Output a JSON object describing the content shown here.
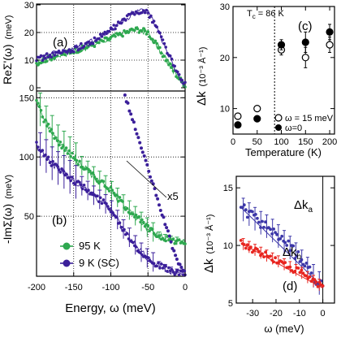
{
  "colors": {
    "green": "#2ea84f",
    "purple": "#3b1f9a",
    "red": "#e8251f",
    "blue": "#3c37a8"
  },
  "chart_data": [
    {
      "panel": "(a)",
      "type": "scatter",
      "ylabel": "ReΣ'(ω) (meV)",
      "xlim": [
        -200,
        0
      ],
      "ylim": [
        0,
        30
      ],
      "yticks": [
        "0",
        "10",
        "20",
        "30"
      ],
      "series": [
        {
          "name": "95 K",
          "color": "green",
          "x": [
            -200,
            -190,
            -180,
            -170,
            -160,
            -150,
            -140,
            -130,
            -120,
            -110,
            -100,
            -90,
            -80,
            -70,
            -60,
            -50,
            -40,
            -30,
            -20,
            -10,
            0
          ],
          "y": [
            9,
            10,
            11,
            12,
            12.5,
            13.5,
            14,
            15,
            16,
            17,
            18,
            19,
            20,
            21,
            21,
            20,
            16,
            12,
            8,
            4,
            1
          ]
        },
        {
          "name": "9 K (SC)",
          "color": "purple",
          "x": [
            -200,
            -190,
            -180,
            -170,
            -160,
            -150,
            -140,
            -130,
            -120,
            -110,
            -100,
            -90,
            -80,
            -70,
            -60,
            -50,
            -40,
            -30,
            -20,
            -10,
            0
          ],
          "y": [
            10,
            11,
            12,
            12.5,
            13,
            14,
            15,
            16,
            17.5,
            19,
            21,
            23,
            25,
            27,
            28,
            27,
            23,
            17,
            11,
            5,
            1
          ]
        }
      ]
    },
    {
      "panel": "(b)",
      "type": "scatter",
      "xlabel": "Energy, ω (meV)",
      "ylabel": "-ImΣ(ω) (meV)",
      "xlim": [
        -200,
        0
      ],
      "ylim": [
        0,
        155
      ],
      "xticks": [
        "-200",
        "-150",
        "-100",
        "-50",
        "0"
      ],
      "yticks": [
        "50",
        "100",
        "150"
      ],
      "annotation": "x5",
      "series": [
        {
          "name": "95 K",
          "color": "green",
          "x": [
            -200,
            -190,
            -180,
            -170,
            -160,
            -150,
            -140,
            -130,
            -120,
            -110,
            -100,
            -90,
            -80,
            -70,
            -60,
            -50,
            -40,
            -30,
            -20,
            -10,
            0
          ],
          "y": [
            148,
            132,
            122,
            112,
            106,
            100,
            93,
            88,
            82,
            78,
            72,
            65,
            58,
            52,
            46,
            40,
            35,
            32,
            30,
            29,
            28
          ]
        },
        {
          "name": "9 K (SC)",
          "color": "purple",
          "x": [
            -200,
            -190,
            -180,
            -170,
            -160,
            -150,
            -140,
            -130,
            -120,
            -110,
            -100,
            -90,
            -80,
            -70,
            -60,
            -50,
            -40,
            -30,
            -20,
            -10,
            0
          ],
          "y": [
            110,
            103,
            95,
            90,
            86,
            80,
            76,
            71,
            66,
            62,
            56,
            46,
            36,
            28,
            20,
            14,
            10,
            7,
            4,
            2,
            1
          ]
        },
        {
          "name": "9 K (SC) x5",
          "color": "purple",
          "x": [
            -85,
            -80,
            -75,
            -70,
            -65,
            -60,
            -55,
            -50,
            -45,
            -40,
            -35,
            -30,
            -25,
            -20,
            -15,
            -10,
            -5,
            0
          ],
          "y": [
            160,
            150,
            140,
            130,
            120,
            110,
            100,
            90,
            80,
            70,
            60,
            50,
            40,
            30,
            20,
            12,
            6,
            2
          ]
        }
      ]
    },
    {
      "panel": "(c)",
      "type": "scatter",
      "xlabel": "Temperature (K)",
      "ylabel": "Δk (10⁻³ Å⁻¹)",
      "xlim": [
        0,
        210
      ],
      "ylim": [
        5,
        30
      ],
      "xticks": [
        "0",
        "50",
        "100",
        "150",
        "200"
      ],
      "yticks": [
        "10",
        "20",
        "30"
      ],
      "annotation": "Tc = 86 K",
      "vline": 86,
      "series": [
        {
          "name": "ω = 15 meV",
          "marker": "open",
          "x": [
            10,
            50,
            100,
            150,
            200
          ],
          "y": [
            8.5,
            10,
            21.5,
            20,
            22.5
          ],
          "err": [
            0,
            0,
            1,
            2,
            1.5
          ]
        },
        {
          "name": "ω=0",
          "marker": "filled",
          "x": [
            10,
            50,
            100,
            150,
            200
          ],
          "y": [
            6.8,
            8,
            22.5,
            23,
            25
          ],
          "err": [
            0,
            0,
            1,
            2,
            1.5
          ]
        }
      ]
    },
    {
      "panel": "(d)",
      "type": "scatter",
      "xlabel": "ω (meV)",
      "ylabel": "Δk (10⁻³ Å⁻¹)",
      "xlim": [
        -37,
        5
      ],
      "ylim": [
        5,
        16
      ],
      "xticks": [
        "-30",
        "-20",
        "-10",
        "0"
      ],
      "yticks": [
        "5",
        "10",
        "15"
      ],
      "vline": 0,
      "series": [
        {
          "name": "Δk_a",
          "color": "blue",
          "x": [
            -35,
            -33,
            -31,
            -29,
            -27,
            -25,
            -23,
            -21,
            -19,
            -17,
            -15,
            -13,
            -11,
            -9,
            -7,
            -5,
            -3,
            -1,
            0
          ],
          "y": [
            13.2,
            13,
            12.6,
            12.3,
            12,
            11.8,
            11.5,
            11.2,
            10.8,
            10.4,
            10,
            9.6,
            9.1,
            8.6,
            8.1,
            7.6,
            7.1,
            6.6,
            6.4
          ]
        },
        {
          "name": "Δk_b",
          "color": "red",
          "x": [
            -35,
            -33,
            -31,
            -29,
            -27,
            -25,
            -23,
            -21,
            -19,
            -17,
            -15,
            -13,
            -11,
            -9,
            -7,
            -5,
            -3,
            -1,
            0
          ],
          "y": [
            10.2,
            10,
            9.8,
            9.6,
            9.4,
            9.2,
            9,
            8.8,
            8.6,
            8.4,
            8.2,
            8,
            7.8,
            7.6,
            7.3,
            7,
            6.8,
            6.5,
            6.3
          ]
        }
      ]
    }
  ],
  "text": {
    "a_label": "(a)",
    "b_label": "(b)",
    "c_label": "(c)",
    "d_label": "(d)",
    "b_x5": "x5",
    "c_tc": "T",
    "c_tc_sub": "c",
    "c_tc_val": " = 86 K",
    "c_leg_open": "ω = 15 meV",
    "c_leg_filled": "ω=0",
    "ab_ylabel_top": "ReΣ'(ω)",
    "ab_ylabel_top_unit": "(meV)",
    "ab_ylabel_bot": "-ImΣ(ω)",
    "ab_ylabel_bot_unit": "(meV)",
    "ab_xlabel": "Energy, ω (meV)",
    "b_leg_95": "95 K",
    "b_leg_9": "9 K (SC)",
    "c_ylabel": "Δk",
    "c_yunit": "(10⁻³ Å⁻¹)",
    "c_xlabel": "Temperature (K)",
    "d_ylabel": "Δk",
    "d_yunit": "(10⁻³ Å⁻¹)",
    "d_xlabel": "ω (meV)",
    "d_ka": "Δk",
    "d_ka_sub": "a",
    "d_kb": "Δk",
    "d_kb_sub": "b"
  }
}
